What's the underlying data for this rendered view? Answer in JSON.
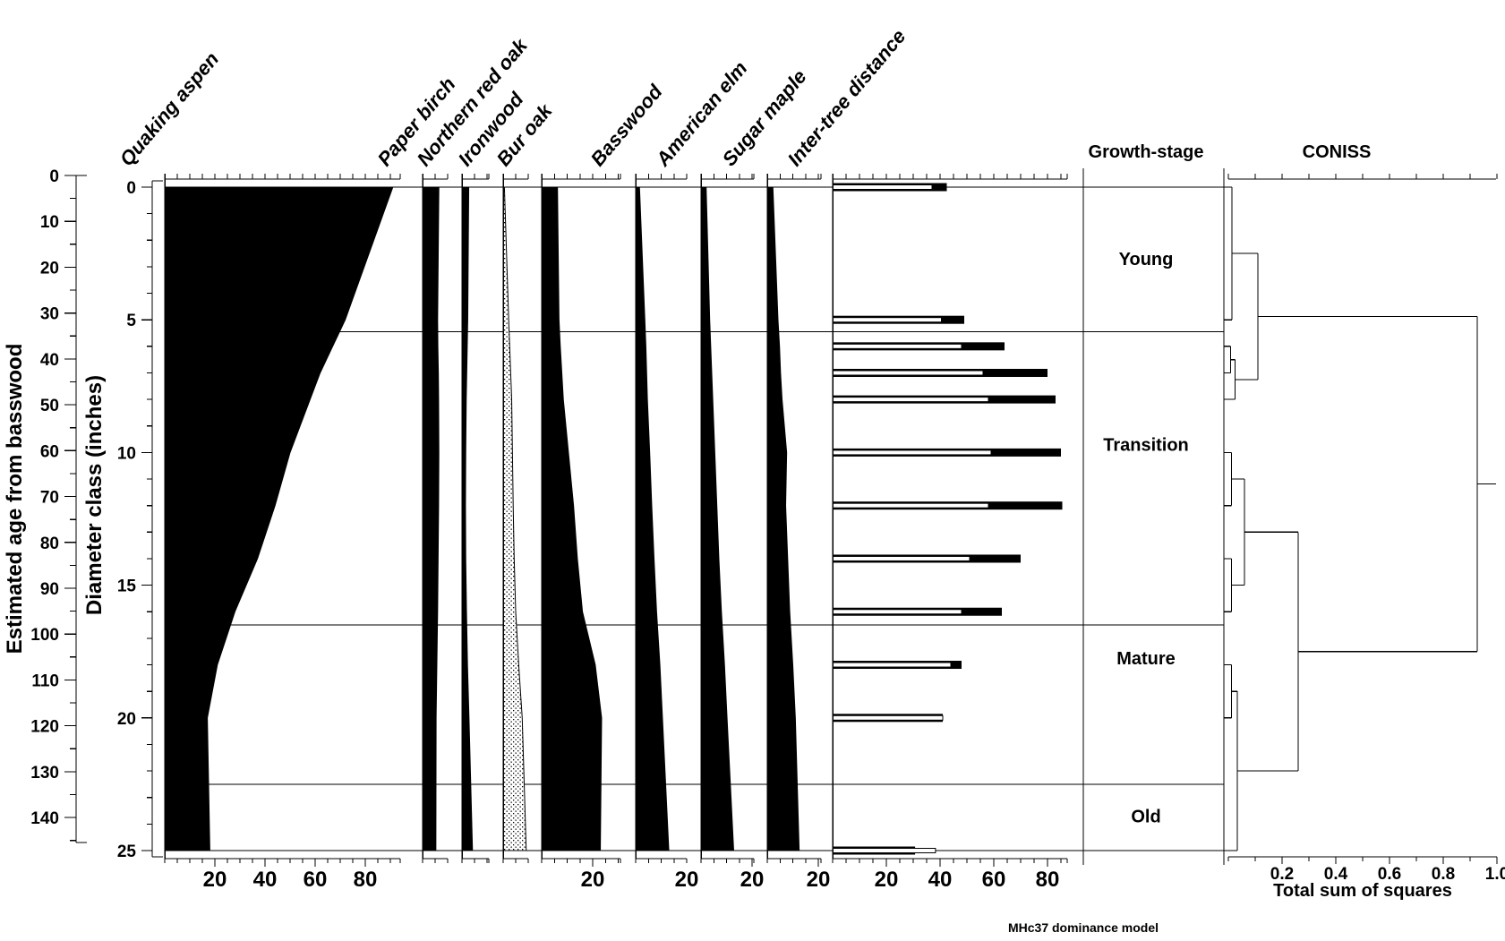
{
  "chart_data": {
    "type": "area",
    "subtype": "stratigraphic-pollen-style-diagram",
    "title": "",
    "footer": "MHc37 dominance model",
    "left_axes": [
      {
        "title": "Estimated age from basswood",
        "ticks": [
          0,
          10,
          20,
          30,
          40,
          50,
          60,
          70,
          80,
          90,
          100,
          110,
          120,
          130,
          140
        ],
        "minor_step": 5,
        "range": [
          0,
          145
        ]
      },
      {
        "title": "Diameter class (inches)",
        "ticks": [
          0,
          5,
          10,
          15,
          20,
          25
        ],
        "minor_step": 1,
        "range": [
          0,
          25
        ]
      }
    ],
    "samples": {
      "diameters": [
        0,
        5,
        6,
        7,
        8,
        10,
        12,
        14,
        16,
        18,
        20,
        25
      ]
    },
    "panels": [
      {
        "key": "quaking_aspen",
        "label": "Quaking aspen",
        "bottom_labels": [
          20,
          40,
          60,
          80
        ],
        "values": [
          91,
          72,
          67,
          62,
          58,
          50,
          44,
          37,
          28,
          21,
          17,
          18
        ]
      },
      {
        "key": "paper_birch",
        "label": "Paper birch",
        "bottom_labels": [],
        "values": [
          6.5,
          6.0,
          6.1,
          6.3,
          6.4,
          6.5,
          6.4,
          6.2,
          6.0,
          5.7,
          5.4,
          5.3
        ]
      },
      {
        "key": "northern_red_oak",
        "label": "Northern red oak",
        "bottom_labels": [],
        "values": [
          2.7,
          2.3,
          2.1,
          1.9,
          1.7,
          1.5,
          1.4,
          1.5,
          1.8,
          2.2,
          2.8,
          4.2
        ]
      },
      {
        "key": "ironwood",
        "label": "Ironwood",
        "bottom_labels": [],
        "fill": "stipple",
        "values": [
          0.5,
          2.2,
          2.6,
          3.0,
          3.4,
          3.7,
          4.0,
          4.4,
          5.0,
          6.2,
          7.6,
          9.2
        ]
      },
      {
        "key": "bur_oak",
        "label": "Bur oak",
        "bottom_labels": [
          20
        ],
        "values": [
          6.2,
          6.8,
          7.3,
          7.9,
          8.5,
          10.5,
          12.5,
          14.0,
          16.0,
          21.0,
          23.5,
          23.0
        ]
      },
      {
        "key": "basswood",
        "label": "Basswood",
        "bottom_labels": [
          20
        ],
        "values": [
          1.5,
          3.6,
          4.0,
          4.3,
          4.6,
          5.5,
          6.3,
          7.2,
          8.2,
          9.5,
          10.5,
          13.0
        ]
      },
      {
        "key": "american_elm",
        "label": "American elm",
        "bottom_labels": [
          20
        ],
        "values": [
          2.0,
          3.4,
          3.8,
          4.2,
          4.6,
          5.4,
          6.2,
          7.0,
          8.0,
          9.2,
          10.2,
          12.8
        ]
      },
      {
        "key": "sugar_maple",
        "label": "Sugar maple",
        "bottom_labels": [
          20
        ],
        "values": [
          2.2,
          4.2,
          4.8,
          5.2,
          5.8,
          7.6,
          7.2,
          8.0,
          8.8,
          10.0,
          11.0,
          12.5
        ]
      },
      {
        "key": "intertree",
        "label": "Inter-tree distance",
        "bottom_labels": [
          20,
          40,
          60,
          80
        ],
        "bars_black": [
          42.5,
          49,
          64,
          80,
          83,
          85,
          85.5,
          70,
          63,
          48,
          41,
          30.7
        ],
        "bars_white": [
          37,
          40.5,
          48,
          56,
          58,
          59,
          58,
          51,
          48,
          44,
          41,
          38.3
        ]
      }
    ],
    "zones": {
      "header": "Growth-stage",
      "boundaries_diameter": [
        5.45,
        16.5,
        22.5
      ],
      "labels": [
        {
          "name": "Young",
          "label_diameter": 2.7
        },
        {
          "name": "Transition",
          "label_diameter": 9.7
        },
        {
          "name": "Mature",
          "label_diameter": 17.75
        },
        {
          "name": "Old",
          "label_diameter": 23.7
        }
      ]
    },
    "coniss": {
      "header": "CONISS",
      "xlabel": "Total sum of squares",
      "tick_labels": [
        0.2,
        0.4,
        0.6,
        0.8,
        1.0
      ],
      "tick_step": 0.1,
      "root_extend": 0.997,
      "tree": {
        "t": 0.927,
        "c": [
          {
            "t": 0.11,
            "c": [
              {
                "t": 0.013,
                "c": [
                  0,
                  1
                ]
              },
              {
                "t": 0.025,
                "c": [
                  {
                    "t": 0.008,
                    "c": [
                      2,
                      3
                    ]
                  },
                  4
                ]
              }
            ]
          },
          {
            "t": 0.26,
            "c": [
              {
                "t": 0.06,
                "c": [
                  {
                    "t": 0.012,
                    "c": [
                      5,
                      6
                    ]
                  },
                  {
                    "t": 0.012,
                    "c": [
                      7,
                      8
                    ]
                  }
                ]
              },
              {
                "t": 0.033,
                "c": [
                  {
                    "t": 0.012,
                    "c": [
                      9,
                      10
                    ]
                  },
                  11
                ]
              }
            ]
          }
        ]
      }
    },
    "colors": {
      "ink": "#000000",
      "background": "#ffffff"
    }
  }
}
